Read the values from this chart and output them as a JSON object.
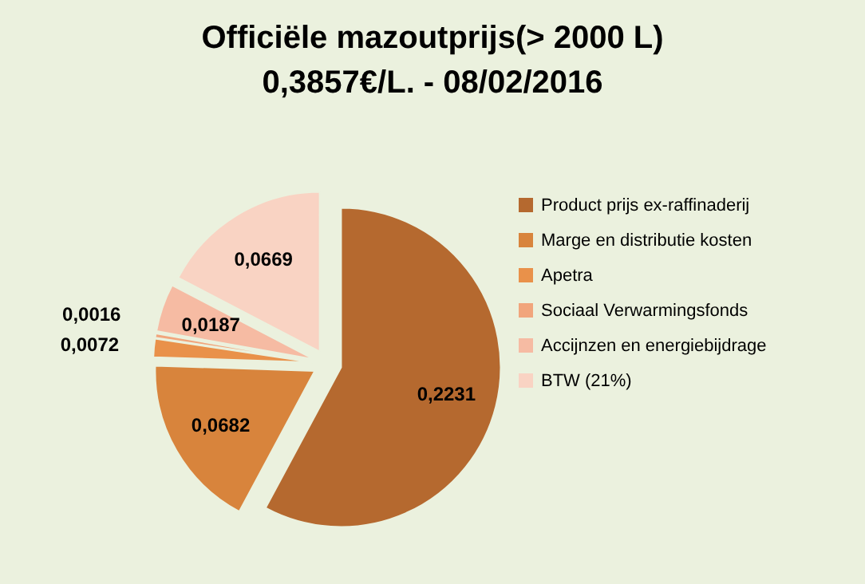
{
  "chart_data": {
    "type": "pie",
    "title": "Officiële mazoutprijs(> 2000 L)",
    "subtitle": "0,3857€/L. - 08/02/2016",
    "categories": [
      "Product prijs ex-raffinaderij",
      "Marge en distributie kosten",
      "Apetra",
      "Sociaal Verwarmingsfonds",
      "Accijnzen en energiebijdrage",
      "BTW (21%)"
    ],
    "values": [
      0.2231,
      0.0682,
      0.0072,
      0.0016,
      0.0187,
      0.0669
    ],
    "colors": [
      "#b5692f",
      "#d8843c",
      "#e9914a",
      "#f1a57c",
      "#f6bba3",
      "#f9d3c3"
    ],
    "value_labels": [
      "0,2231",
      "0,0682",
      "0,0072",
      "0,0016",
      "0,0187",
      "0,0669"
    ],
    "legend": "right"
  }
}
